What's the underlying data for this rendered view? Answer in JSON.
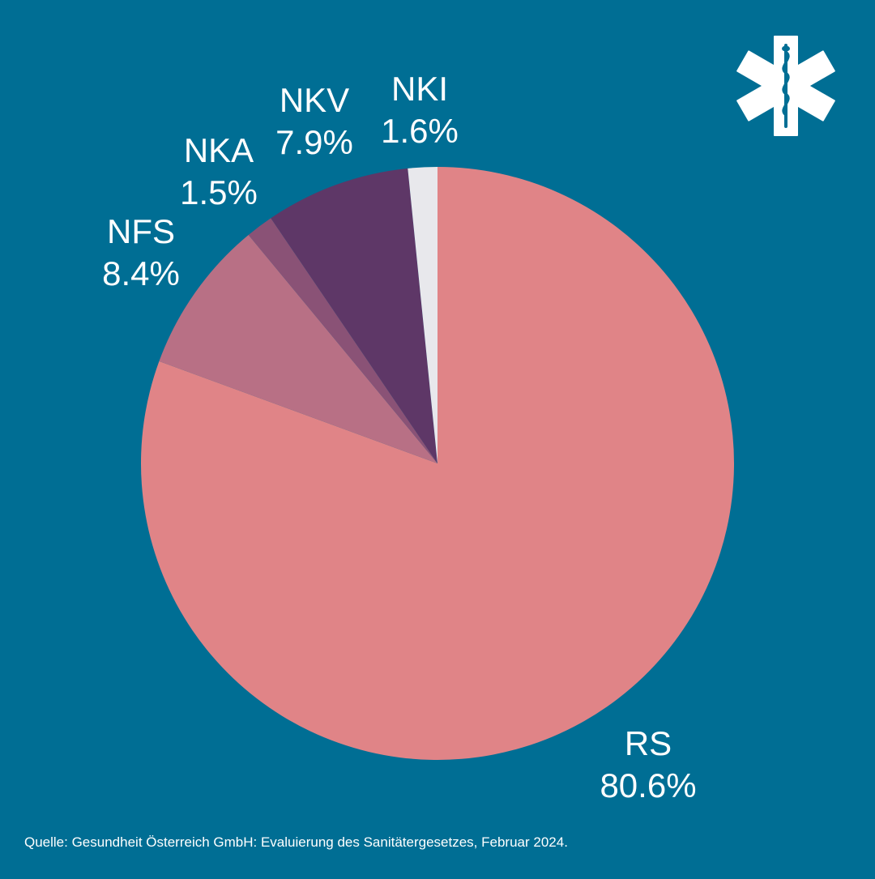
{
  "colors": {
    "background": "#006e94",
    "text": "#ffffff"
  },
  "logo_icon": "star-of-life-icon",
  "chart_data": {
    "type": "pie",
    "start_angle": "12 o'clock",
    "direction": "clockwise",
    "slices": [
      {
        "label": "RS",
        "value": 80.6,
        "display": "80.6%",
        "color": "#e08487"
      },
      {
        "label": "NFS",
        "value": 8.4,
        "display": "8.4%",
        "color": "#b87085"
      },
      {
        "label": "NKA",
        "value": 1.5,
        "display": "1.5%",
        "color": "#8a5276"
      },
      {
        "label": "NKV",
        "value": 7.9,
        "display": "7.9%",
        "color": "#5e3767"
      },
      {
        "label": "NKI",
        "value": 1.6,
        "display": "1.6%",
        "color": "#e8e8ec"
      }
    ]
  },
  "source": "Quelle: Gesundheit Österreich GmbH: Evaluierung des Sanitätergesetzes, Februar 2024."
}
